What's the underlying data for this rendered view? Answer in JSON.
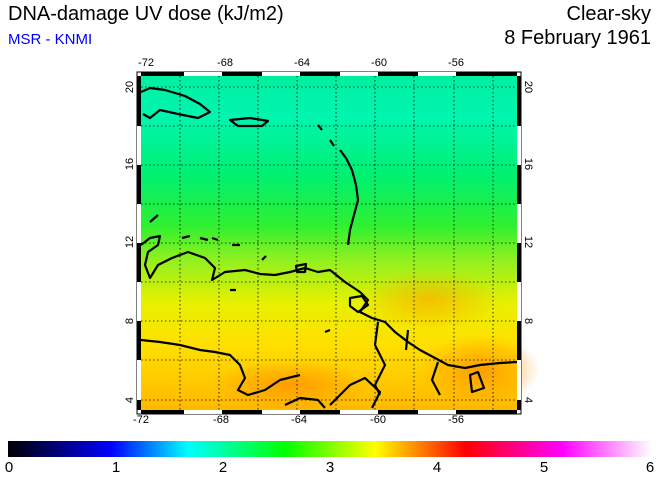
{
  "header": {
    "title": "DNA-damage UV dose (kJ/m2)",
    "source": "MSR - KNMI",
    "condition": "Clear-sky",
    "date": "8 February 1961"
  },
  "map": {
    "lon_ticks": [
      "-72",
      "-68",
      "-64",
      "-60",
      "-56"
    ],
    "lat_ticks": [
      "20",
      "16",
      "12",
      "8",
      "4"
    ],
    "lon_range": [
      -72.0,
      -52.8
    ],
    "lat_range": [
      3.5,
      20.6
    ]
  },
  "colorbar": {
    "labels": [
      "0",
      "1",
      "2",
      "3",
      "4",
      "5",
      "6"
    ],
    "range": [
      0,
      6
    ],
    "colors": [
      "#000000",
      "#0000ff",
      "#00ffff",
      "#00ff00",
      "#ffff00",
      "#ff0000",
      "#ff00ff",
      "#ffffff"
    ]
  }
}
